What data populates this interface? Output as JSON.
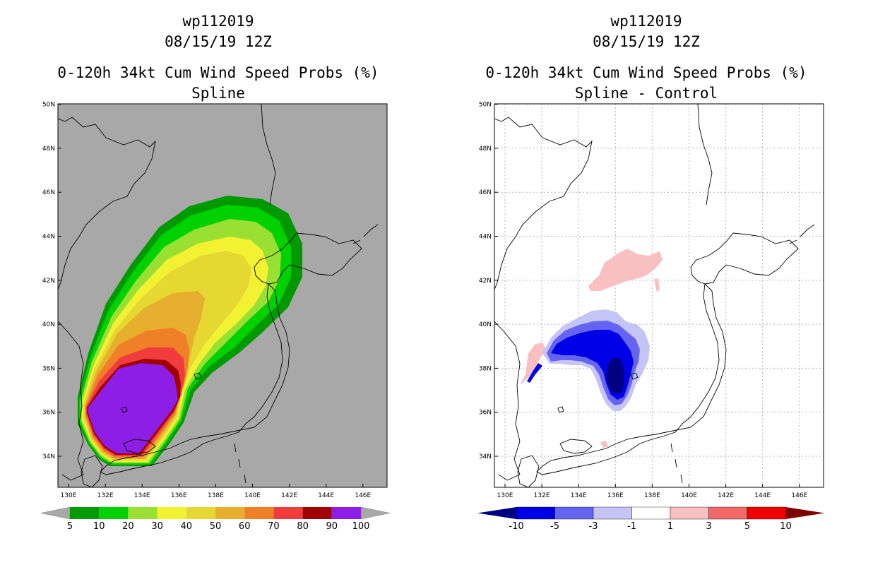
{
  "left": {
    "storm_id": "wp112019",
    "datetime": "08/15/19 12Z",
    "title": "0-120h 34kt Cum Wind Speed Probs (%)",
    "subtitle": "Spline",
    "colorbar": {
      "labels": [
        "5",
        "10",
        "20",
        "30",
        "40",
        "50",
        "60",
        "70",
        "80",
        "90",
        "100"
      ],
      "colors": [
        "#009900",
        "#00d100",
        "#99e033",
        "#f2f233",
        "#e6d833",
        "#e6b02e",
        "#f08028",
        "#f03c3c",
        "#a00000",
        "#8c1ee6"
      ]
    }
  },
  "right": {
    "storm_id": "wp112019",
    "datetime": "08/15/19 12Z",
    "title": "0-120h 34kt Cum Wind Speed Probs (%)",
    "subtitle": "Spline - Control",
    "colorbar": {
      "labels": [
        "-10",
        "-5",
        "-3",
        "-1",
        "1",
        "3",
        "5",
        "10"
      ],
      "colors": [
        "#0000e6",
        "#6464f0",
        "#c4c4f5",
        "#ffffff",
        "#f8c0c0",
        "#f06868",
        "#f00000"
      ],
      "left_end_color": "#000080",
      "right_end_color": "#800000"
    }
  },
  "axes": {
    "x_ticks": [
      "130E",
      "132E",
      "134E",
      "136E",
      "138E",
      "140E",
      "142E",
      "144E",
      "146E"
    ],
    "y_ticks": [
      "34N",
      "36N",
      "38N",
      "40N",
      "42N",
      "44N",
      "46N",
      "48N",
      "50N"
    ]
  },
  "colors": {
    "background_left": "#a8a8a8",
    "background_right": "#ffffff",
    "coast": "#000000",
    "grid": "#b4b4b4",
    "prob_fill": [
      "#009900",
      "#00d100",
      "#99e033",
      "#f2f233",
      "#e6d833",
      "#e6b02e",
      "#f08028",
      "#f03c3c",
      "#a00000",
      "#8c1ee6"
    ],
    "diff_fill": {
      "pink": "#f8c0c0",
      "red": "#f06868",
      "light_blue": "#c4c4f5",
      "mid_blue": "#6464f0",
      "blue": "#0000e6",
      "navy": "#000080"
    }
  }
}
